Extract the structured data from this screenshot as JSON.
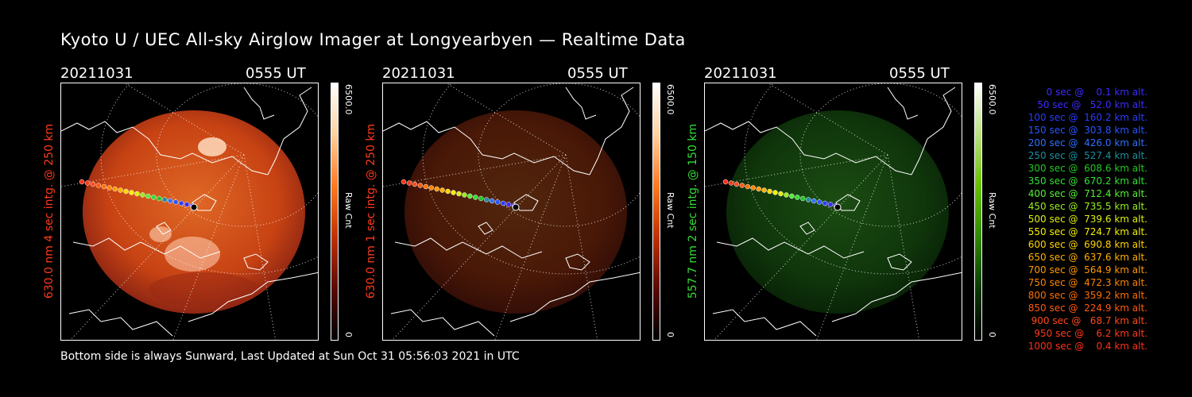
{
  "title": "Kyoto U / UEC All-sky Airglow Imager at Longyearbyen — Realtime Data",
  "footer": "Bottom side is always Sunward, Last Updated at Sun Oct 31 05:56:03 2021 in UTC",
  "panels": [
    {
      "date": "20211031",
      "time": "0555 UT",
      "ylabel": "630.0 nm 4 sec intg. @ 250 km",
      "label_color": "#ff3a1a",
      "cbar_max": "6500.0",
      "cbar_unit": "Raw Cnt",
      "cbar_min": "0",
      "tint": "red",
      "brightness": 0.95
    },
    {
      "date": "20211031",
      "time": "0555 UT",
      "ylabel": "630.0 nm 1 sec intg. @ 250 km",
      "label_color": "#ff3a1a",
      "cbar_max": "6500.0",
      "cbar_unit": "Raw Cnt",
      "cbar_min": "0",
      "tint": "red",
      "brightness": 0.35
    },
    {
      "date": "20211031",
      "time": "0555 UT",
      "ylabel": "557.7 nm 2 sec intg. @ 150 km",
      "label_color": "#33dd33",
      "cbar_max": "6500.0",
      "cbar_unit": "Raw Cnt",
      "cbar_min": "0",
      "tint": "green",
      "brightness": 0.45
    }
  ],
  "legend": [
    {
      "text": "   0 sec @    0.1 km alt.",
      "color": "#3b2cff"
    },
    {
      "text": "  50 sec @   52.0 km alt.",
      "color": "#3b2cff"
    },
    {
      "text": " 100 sec @  160.2 km alt.",
      "color": "#2a3cff"
    },
    {
      "text": " 150 sec @  303.8 km alt.",
      "color": "#2a55ff"
    },
    {
      "text": " 200 sec @  426.0 km alt.",
      "color": "#2f6fff"
    },
    {
      "text": " 250 sec @  527.4 km alt.",
      "color": "#1b8fa0"
    },
    {
      "text": " 300 sec @  608.6 km alt.",
      "color": "#22c622"
    },
    {
      "text": " 350 sec @  670.2 km alt.",
      "color": "#33e033"
    },
    {
      "text": " 400 sec @  712.4 km alt.",
      "color": "#55ee33"
    },
    {
      "text": " 450 sec @  735.5 km alt.",
      "color": "#99ee22"
    },
    {
      "text": " 500 sec @  739.6 km alt.",
      "color": "#ddee11"
    },
    {
      "text": " 550 sec @  724.7 km alt.",
      "color": "#f4f000"
    },
    {
      "text": " 600 sec @  690.8 km alt.",
      "color": "#ffd400"
    },
    {
      "text": " 650 sec @  637.6 km alt.",
      "color": "#ffb000"
    },
    {
      "text": " 700 sec @  564.9 km alt.",
      "color": "#ff9800"
    },
    {
      "text": " 750 sec @  472.3 km alt.",
      "color": "#ff8400"
    },
    {
      "text": " 800 sec @  359.2 km alt.",
      "color": "#ff7000"
    },
    {
      "text": " 850 sec @  224.9 km alt.",
      "color": "#ff5a10"
    },
    {
      "text": " 900 sec @   68.7 km alt.",
      "color": "#ff4a1a"
    },
    {
      "text": " 950 sec @    6.2 km alt.",
      "color": "#ff3a1a"
    },
    {
      "text": "1000 sec @    0.4 km alt.",
      "color": "#ff3018"
    }
  ]
}
